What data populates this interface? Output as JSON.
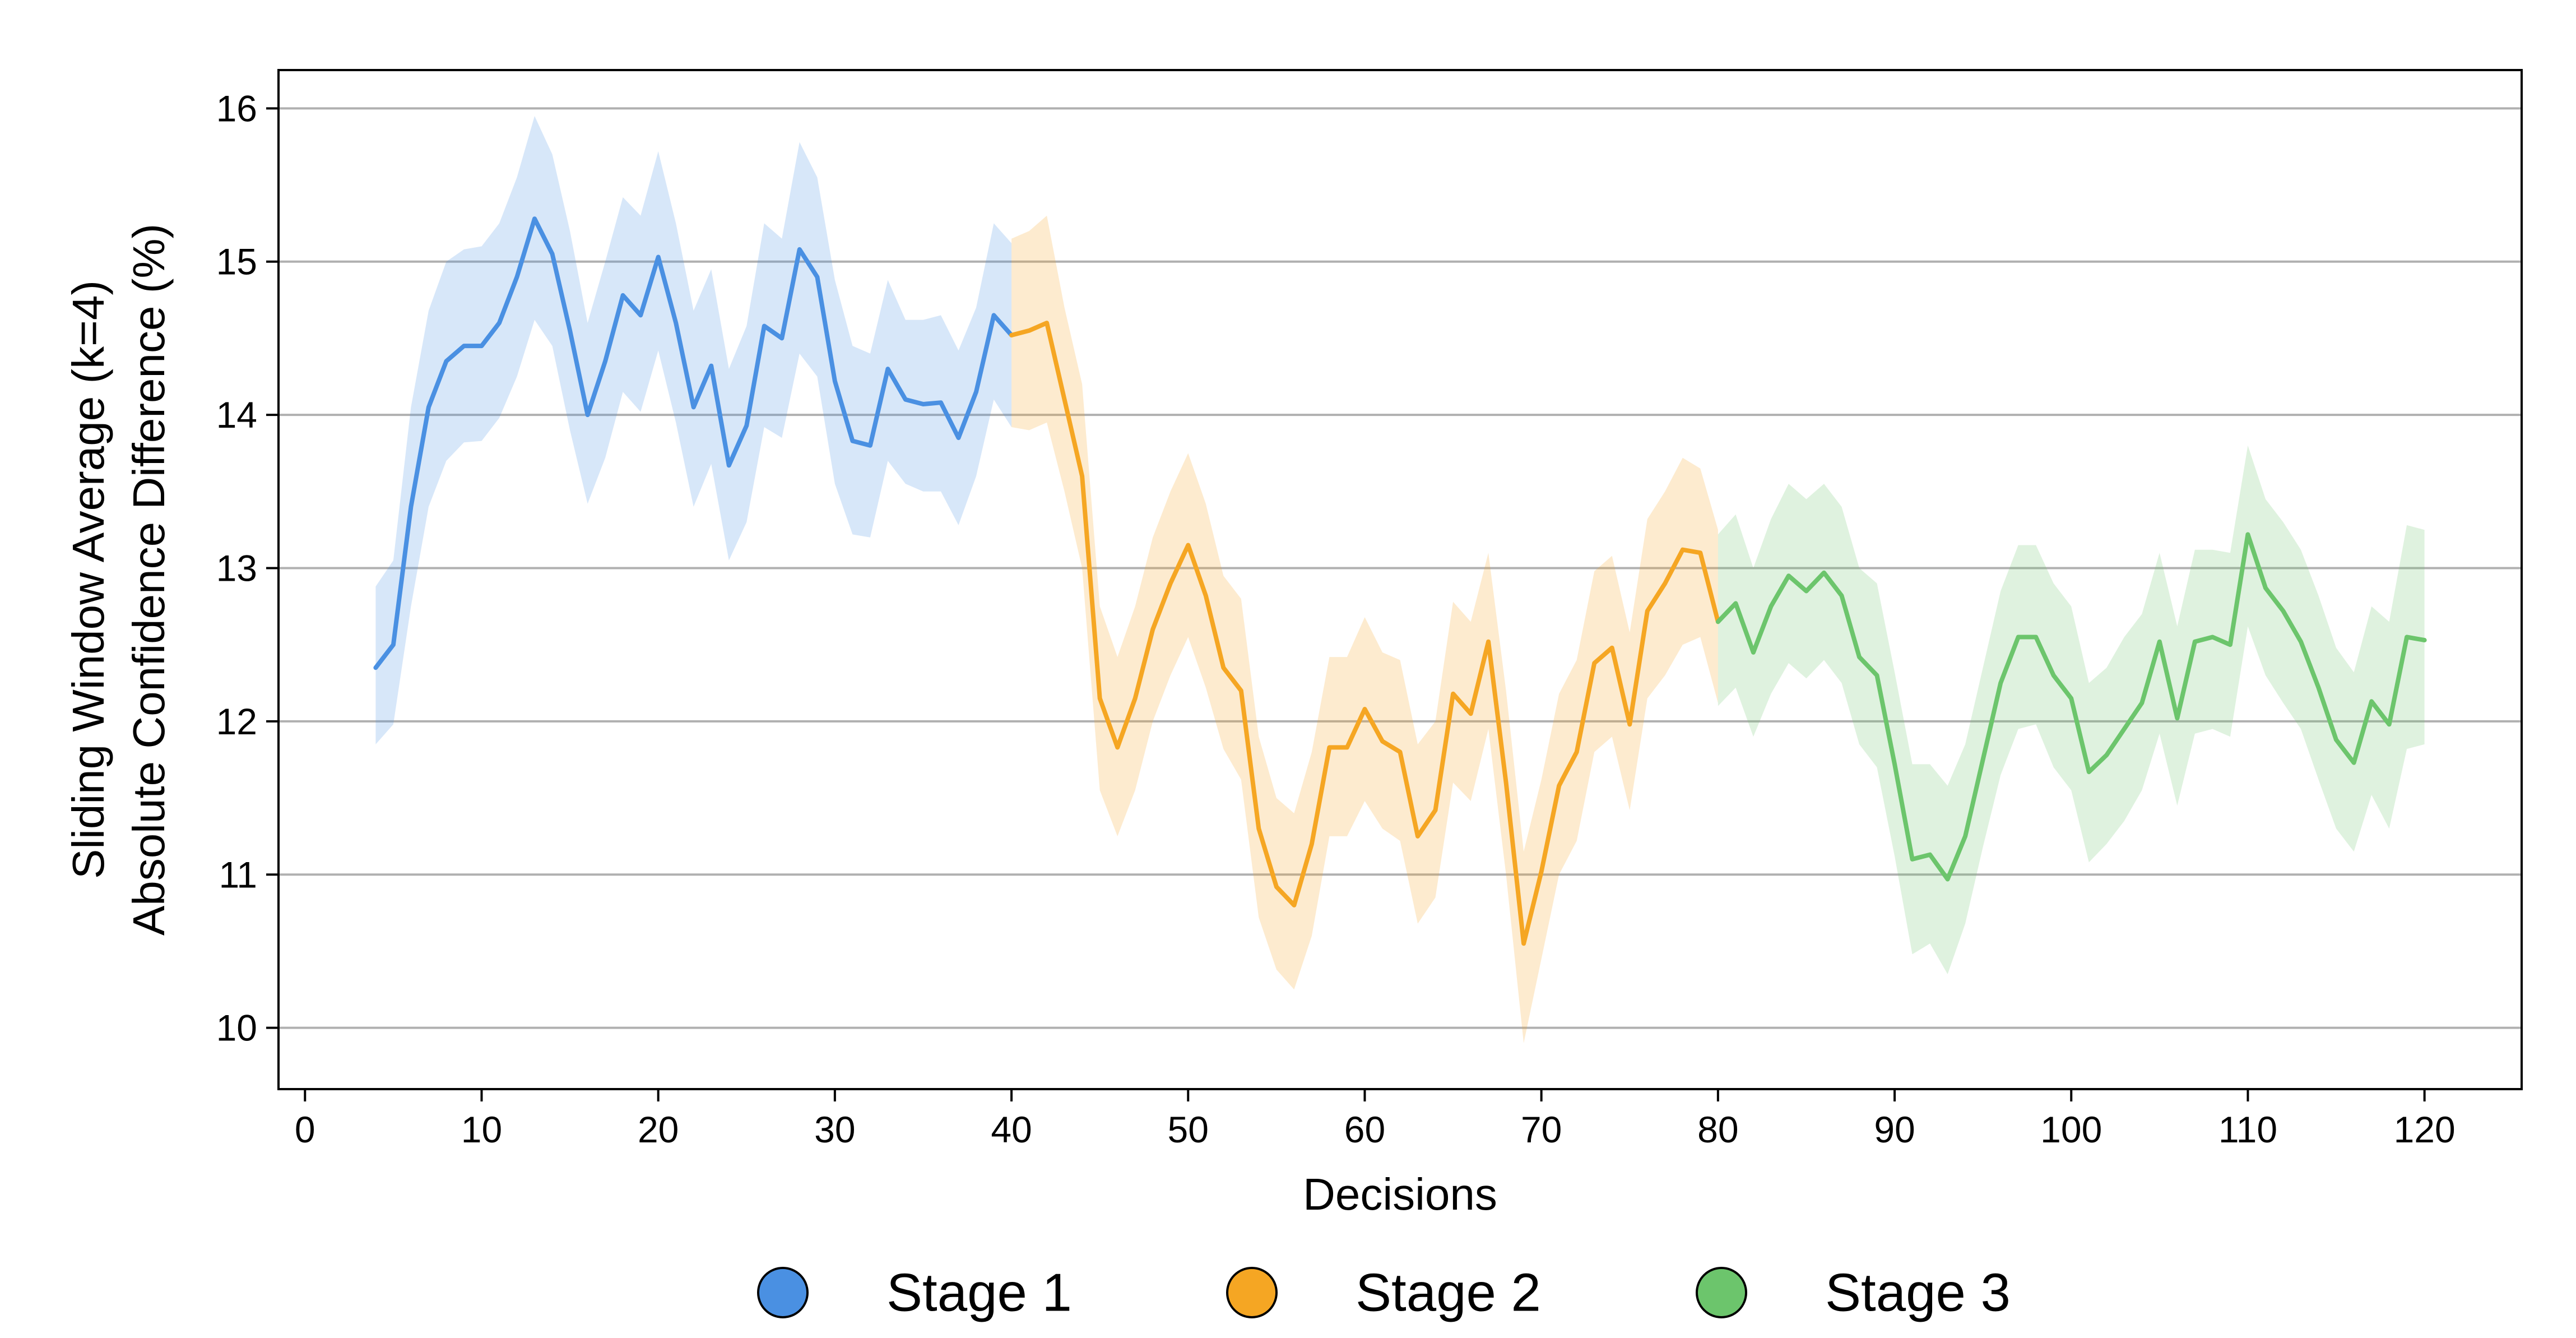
{
  "chart_data": {
    "type": "line",
    "title": "",
    "xlabel": "Decisions",
    "ylabel_lines": [
      "Sliding Window Average (k=4)",
      "Absolute Confidence Difference (%)"
    ],
    "xlim": [
      -1.5,
      125.5
    ],
    "ylim": [
      9.6,
      16.25
    ],
    "xticks": [
      0,
      10,
      20,
      30,
      40,
      50,
      60,
      70,
      80,
      90,
      100,
      110,
      120
    ],
    "yticks": [
      10,
      11,
      12,
      13,
      14,
      15,
      16
    ],
    "grid": "horizontal",
    "legend_position": "bottom-center",
    "series": [
      {
        "name": "Stage 1",
        "color": "#4a90e2",
        "x": [
          4,
          5,
          6,
          7,
          8,
          9,
          10,
          11,
          12,
          13,
          14,
          15,
          16,
          17,
          18,
          19,
          20,
          21,
          22,
          23,
          24,
          25,
          26,
          27,
          28,
          29,
          30,
          31,
          32,
          33,
          34,
          35,
          36,
          37,
          38,
          39,
          40
        ],
        "mean": [
          12.35,
          12.5,
          13.4,
          14.05,
          14.35,
          14.45,
          14.45,
          14.6,
          14.9,
          15.28,
          15.05,
          14.55,
          14.0,
          14.35,
          14.78,
          14.65,
          15.03,
          14.6,
          14.05,
          14.32,
          13.67,
          13.93,
          14.58,
          14.5,
          15.08,
          14.9,
          14.22,
          13.83,
          13.8,
          14.3,
          14.1,
          14.07,
          14.08,
          13.85,
          14.15,
          14.65,
          14.52
        ],
        "lower": [
          11.85,
          11.98,
          12.75,
          13.4,
          13.7,
          13.82,
          13.83,
          13.98,
          14.25,
          14.62,
          14.45,
          13.9,
          13.42,
          13.72,
          14.15,
          14.02,
          14.42,
          13.95,
          13.4,
          13.68,
          13.05,
          13.3,
          13.92,
          13.85,
          14.4,
          14.25,
          13.55,
          13.22,
          13.2,
          13.7,
          13.55,
          13.5,
          13.5,
          13.28,
          13.6,
          14.1,
          13.92
        ],
        "upper": [
          12.88,
          13.05,
          14.05,
          14.68,
          15.0,
          15.08,
          15.1,
          15.25,
          15.55,
          15.95,
          15.7,
          15.2,
          14.6,
          15.0,
          15.42,
          15.3,
          15.72,
          15.25,
          14.68,
          14.95,
          14.3,
          14.58,
          15.25,
          15.15,
          15.78,
          15.55,
          14.88,
          14.45,
          14.4,
          14.88,
          14.62,
          14.62,
          14.65,
          14.42,
          14.7,
          15.25,
          15.12
        ]
      },
      {
        "name": "Stage 2",
        "color": "#f5a623",
        "x": [
          40,
          41,
          42,
          43,
          44,
          45,
          46,
          47,
          48,
          49,
          50,
          51,
          52,
          53,
          54,
          55,
          56,
          57,
          58,
          59,
          60,
          61,
          62,
          63,
          64,
          65,
          66,
          67,
          68,
          69,
          70,
          71,
          72,
          73,
          74,
          75,
          76,
          77,
          78,
          79,
          80
        ],
        "mean": [
          14.52,
          14.55,
          14.6,
          14.1,
          13.6,
          12.15,
          11.83,
          12.15,
          12.6,
          12.9,
          13.15,
          12.82,
          12.35,
          12.2,
          11.3,
          10.92,
          10.8,
          11.2,
          11.83,
          11.83,
          12.08,
          11.87,
          11.8,
          11.25,
          11.42,
          12.18,
          12.05,
          12.52,
          11.6,
          10.55,
          11.02,
          11.58,
          11.8,
          12.38,
          12.48,
          11.98,
          12.72,
          12.9,
          13.12,
          13.1,
          12.65
        ],
        "lower": [
          13.92,
          13.9,
          13.95,
          13.5,
          13.0,
          11.55,
          11.25,
          11.55,
          12.0,
          12.3,
          12.55,
          12.22,
          11.82,
          11.62,
          10.72,
          10.38,
          10.25,
          10.6,
          11.25,
          11.25,
          11.48,
          11.3,
          11.22,
          10.68,
          10.85,
          11.6,
          11.48,
          11.95,
          11.0,
          9.9,
          10.45,
          11.0,
          11.22,
          11.8,
          11.9,
          11.42,
          12.15,
          12.3,
          12.5,
          12.55,
          12.12
        ],
        "upper": [
          15.15,
          15.2,
          15.3,
          14.7,
          14.2,
          12.75,
          12.42,
          12.75,
          13.2,
          13.5,
          13.75,
          13.42,
          12.95,
          12.8,
          11.9,
          11.5,
          11.4,
          11.8,
          12.42,
          12.42,
          12.68,
          12.45,
          12.4,
          11.85,
          12.0,
          12.78,
          12.65,
          13.1,
          12.2,
          11.15,
          11.62,
          12.18,
          12.4,
          12.98,
          13.08,
          12.58,
          13.32,
          13.5,
          13.72,
          13.65,
          13.25
        ]
      },
      {
        "name": "Stage 3",
        "color": "#6cc56c",
        "x": [
          80,
          81,
          82,
          83,
          84,
          85,
          86,
          87,
          88,
          89,
          90,
          91,
          92,
          93,
          94,
          95,
          96,
          97,
          98,
          99,
          100,
          101,
          102,
          103,
          104,
          105,
          106,
          107,
          108,
          109,
          110,
          111,
          112,
          113,
          114,
          115,
          116,
          117,
          118,
          119,
          120
        ],
        "mean": [
          12.65,
          12.77,
          12.45,
          12.75,
          12.95,
          12.85,
          12.97,
          12.82,
          12.42,
          12.3,
          11.72,
          11.1,
          11.13,
          10.97,
          11.25,
          11.75,
          12.25,
          12.55,
          12.55,
          12.3,
          12.15,
          11.67,
          11.78,
          11.95,
          12.12,
          12.52,
          12.02,
          12.52,
          12.55,
          12.5,
          13.22,
          12.87,
          12.72,
          12.52,
          12.22,
          11.88,
          11.73,
          12.13,
          11.98,
          12.55,
          12.53
        ],
        "lower": [
          12.1,
          12.22,
          11.9,
          12.18,
          12.38,
          12.28,
          12.4,
          12.25,
          11.85,
          11.7,
          11.12,
          10.48,
          10.55,
          10.35,
          10.68,
          11.18,
          11.65,
          11.95,
          11.98,
          11.7,
          11.55,
          11.08,
          11.2,
          11.35,
          11.55,
          11.92,
          11.45,
          11.92,
          11.95,
          11.9,
          12.62,
          12.3,
          12.12,
          11.95,
          11.62,
          11.3,
          11.15,
          11.52,
          11.3,
          11.82,
          11.85
        ],
        "upper": [
          13.22,
          13.35,
          13.0,
          13.32,
          13.55,
          13.45,
          13.55,
          13.4,
          13.0,
          12.9,
          12.32,
          11.72,
          11.72,
          11.58,
          11.85,
          12.35,
          12.85,
          13.15,
          13.15,
          12.9,
          12.75,
          12.25,
          12.35,
          12.55,
          12.7,
          13.1,
          12.62,
          13.12,
          13.12,
          13.1,
          13.8,
          13.45,
          13.3,
          13.12,
          12.82,
          12.48,
          12.32,
          12.75,
          12.65,
          13.28,
          13.25
        ]
      }
    ]
  }
}
